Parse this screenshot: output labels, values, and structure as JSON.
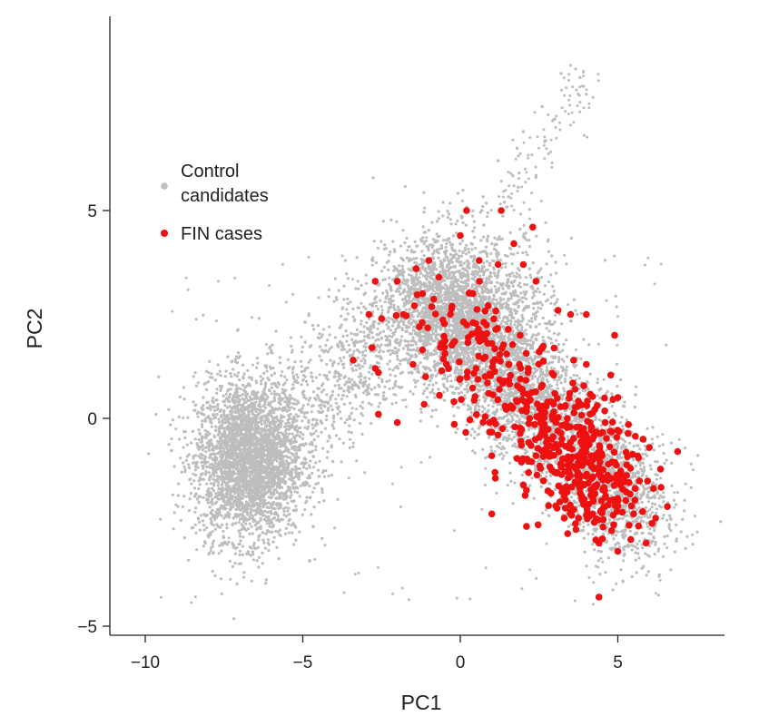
{
  "chart_data": {
    "type": "scatter",
    "xlabel": "PC1",
    "ylabel": "PC2",
    "xlim": [
      -11,
      8.5
    ],
    "ylim": [
      -5.3,
      9.7
    ],
    "x_ticks": [
      -10,
      -5,
      0,
      5
    ],
    "y_ticks": [
      -5,
      0,
      5
    ],
    "x_tick_labels": [
      "−10",
      "−5",
      "0",
      "5"
    ],
    "y_tick_labels": [
      "−5",
      "0",
      "5"
    ],
    "grid": false,
    "legend_position": "upper-left",
    "series": [
      {
        "name_lines": [
          "Control",
          "candidates"
        ],
        "color": "#bdbdbd",
        "description_points": [
          [
            -7.2,
            -0.9
          ],
          [
            -6.8,
            -1.2
          ],
          [
            -6.5,
            -0.5
          ],
          [
            -7.5,
            -1.5
          ],
          [
            -6.2,
            -1.0
          ],
          [
            -7.0,
            -0.2
          ],
          [
            -6.0,
            -1.8
          ],
          [
            -7.8,
            -1.0
          ],
          [
            -6.6,
            0.3
          ],
          [
            -5.8,
            -0.6
          ],
          [
            -7.3,
            -2.2
          ],
          [
            -6.9,
            0.8
          ],
          [
            -5.5,
            -1.2
          ],
          [
            -8.2,
            -0.5
          ],
          [
            -6.4,
            -2.5
          ],
          [
            -5.9,
            0.5
          ],
          [
            -7.6,
            0.2
          ],
          [
            -6.1,
            -3.0
          ],
          [
            -8.0,
            -1.8
          ],
          [
            -5.3,
            -0.2
          ],
          [
            -4.5,
            0.5
          ],
          [
            -4.0,
            1.0
          ],
          [
            -3.5,
            1.5
          ],
          [
            -3.0,
            1.8
          ],
          [
            -4.2,
            1.6
          ],
          [
            -3.8,
            2.2
          ],
          [
            -2.8,
            2.5
          ],
          [
            -2.2,
            2.8
          ],
          [
            -1.5,
            3.0
          ],
          [
            -1.0,
            3.6
          ],
          [
            -0.5,
            3.8
          ],
          [
            0.0,
            4.2
          ],
          [
            0.4,
            4.5
          ],
          [
            0.8,
            4.0
          ],
          [
            1.2,
            3.5
          ],
          [
            1.6,
            3.0
          ],
          [
            2.0,
            2.6
          ],
          [
            2.4,
            2.2
          ],
          [
            2.8,
            1.6
          ],
          [
            3.2,
            1.0
          ],
          [
            3.6,
            0.4
          ],
          [
            4.0,
            -0.2
          ],
          [
            4.4,
            -0.8
          ],
          [
            4.8,
            -1.3
          ],
          [
            5.2,
            -1.8
          ],
          [
            5.6,
            -2.2
          ],
          [
            6.0,
            -2.5
          ],
          [
            -1.0,
            1.2
          ],
          [
            -0.2,
            0.6
          ],
          [
            0.6,
            0.2
          ],
          [
            1.5,
            -0.3
          ],
          [
            2.5,
            -1.0
          ],
          [
            3.4,
            -1.6
          ],
          [
            4.2,
            -2.4
          ],
          [
            5.0,
            -3.0
          ],
          [
            0.2,
            2.0
          ],
          [
            1.0,
            1.5
          ],
          [
            -2.0,
            1.6
          ],
          [
            -0.8,
            2.4
          ],
          [
            2.2,
            3.6
          ],
          [
            1.4,
            5.2
          ],
          [
            1.8,
            6.5
          ],
          [
            2.6,
            7.5
          ],
          [
            3.2,
            8.3
          ],
          [
            3.8,
            8.2
          ],
          [
            4.0,
            7.8
          ],
          [
            2.0,
            6.9
          ],
          [
            1.2,
            6.2
          ],
          [
            2.4,
            5.8
          ],
          [
            3.0,
            7.2
          ]
        ]
      },
      {
        "name": "FIN cases",
        "color": "#ee1111",
        "description_points": [
          [
            0.2,
            5.0
          ],
          [
            1.3,
            5.0
          ],
          [
            2.3,
            4.6
          ],
          [
            0.0,
            4.4
          ],
          [
            1.7,
            4.2
          ],
          [
            -1.0,
            3.8
          ],
          [
            0.6,
            3.8
          ],
          [
            -1.4,
            3.6
          ],
          [
            1.2,
            3.7
          ],
          [
            2.0,
            3.7
          ],
          [
            -2.0,
            3.3
          ],
          [
            -2.7,
            3.3
          ],
          [
            2.4,
            3.3
          ],
          [
            -1.2,
            3.0
          ],
          [
            0.4,
            3.0
          ],
          [
            3.1,
            2.6
          ],
          [
            -1.8,
            2.5
          ],
          [
            -2.9,
            2.5
          ],
          [
            -2.5,
            2.4
          ],
          [
            3.5,
            2.5
          ],
          [
            4.0,
            2.5
          ],
          [
            -1.3,
            2.2
          ],
          [
            0.6,
            2.0
          ],
          [
            1.9,
            2.0
          ],
          [
            4.9,
            2.0
          ],
          [
            -0.6,
            1.8
          ],
          [
            2.5,
            1.6
          ],
          [
            -1.5,
            1.3
          ],
          [
            -3.4,
            1.4
          ],
          [
            -2.8,
            1.7
          ],
          [
            0.5,
            1.2
          ],
          [
            3.6,
            1.4
          ],
          [
            4.0,
            1.3
          ],
          [
            -1.1,
            1.0
          ],
          [
            1.4,
            0.9
          ],
          [
            2.6,
            0.8
          ],
          [
            -2.7,
            1.2
          ],
          [
            -2.6,
            1.1
          ],
          [
            0.9,
            0.6
          ],
          [
            3.0,
            0.6
          ],
          [
            -0.2,
            0.4
          ],
          [
            1.8,
            0.4
          ],
          [
            5.0,
            0.5
          ],
          [
            -2.6,
            0.1
          ],
          [
            -2.0,
            -0.1
          ],
          [
            2.2,
            0.0
          ],
          [
            3.4,
            0.0
          ],
          [
            4.6,
            -0.1
          ],
          [
            1.2,
            -0.4
          ],
          [
            2.9,
            -0.5
          ],
          [
            4.2,
            -0.5
          ],
          [
            5.8,
            -0.5
          ],
          [
            6.0,
            -0.7
          ],
          [
            6.9,
            -0.8
          ],
          [
            1.0,
            -0.9
          ],
          [
            2.4,
            -0.9
          ],
          [
            3.5,
            -1.0
          ],
          [
            4.7,
            -1.1
          ],
          [
            5.4,
            -1.2
          ],
          [
            1.1,
            -1.3
          ],
          [
            3.0,
            -1.3
          ],
          [
            4.0,
            -1.4
          ],
          [
            2.0,
            -1.6
          ],
          [
            3.8,
            -1.8
          ],
          [
            4.6,
            -1.9
          ],
          [
            2.8,
            -2.1
          ],
          [
            4.2,
            -2.3
          ],
          [
            5.5,
            -2.3
          ],
          [
            1.0,
            -2.3
          ],
          [
            2.1,
            -2.6
          ],
          [
            3.3,
            -2.4
          ],
          [
            4.8,
            -2.7
          ],
          [
            5.0,
            -3.2
          ],
          [
            4.4,
            -3.0
          ],
          [
            5.9,
            -3.0
          ],
          [
            6.2,
            -2.4
          ],
          [
            4.4,
            -4.3
          ],
          [
            4.5,
            -0.9
          ],
          [
            3.8,
            -0.4
          ],
          [
            2.6,
            -0.3
          ]
        ]
      }
    ]
  }
}
